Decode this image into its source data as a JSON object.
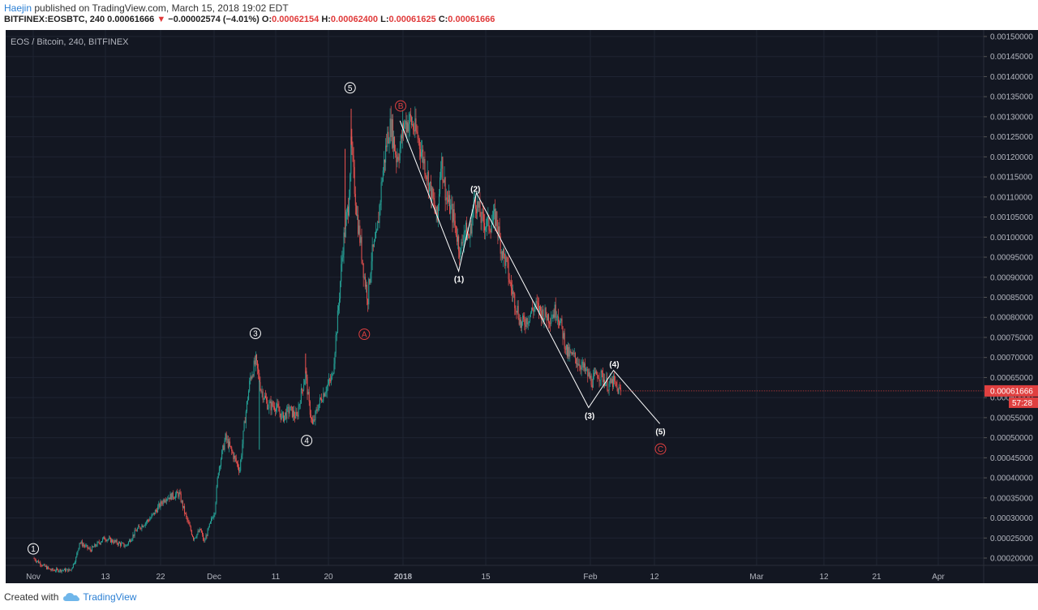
{
  "header": {
    "author": "Haejin",
    "published_text": "published on TradingView.com, March 15, 2018 19:02 EDT",
    "symbol": "BITFINEX:EOSBTC, 240",
    "last": "0.00061666",
    "change": "−0.00002574 (−4.01%)",
    "o_label": "O:",
    "o_value": "0.00062154",
    "h_label": "H:",
    "h_value": "0.00062400",
    "l_label": "L:",
    "l_value": "0.00061625",
    "c_label": "C:",
    "c_value": "0.00061666"
  },
  "footer": {
    "created_with": "Created with",
    "brand": "TradingView"
  },
  "colors": {
    "background": "#131722",
    "up": "#26a69a",
    "down": "#ef5350",
    "grid": "#1f2433",
    "axis_text": "#b2b5be",
    "wave_line": "#ffffff",
    "abc_labels": "#e04040",
    "price_tag": "#e04040"
  },
  "chart_data": {
    "type": "candlestick",
    "title": "EOS / Bitcoin, 240, BITFINEX",
    "x_tick_labels": [
      "Nov",
      "13",
      "22",
      "Dec",
      "11",
      "20",
      "2018",
      "15",
      "Feb",
      "12",
      "Mar",
      "12",
      "21",
      "Apr"
    ],
    "y_tick_labels": [
      "0.00150000",
      "0.00145000",
      "0.00140000",
      "0.00135000",
      "0.00130000",
      "0.00125000",
      "0.00120000",
      "0.00115000",
      "0.00110000",
      "0.00105000",
      "0.00100000",
      "0.00095000",
      "0.00090000",
      "0.00085000",
      "0.00080000",
      "0.00075000",
      "0.00070000",
      "0.00065000",
      "0.00060000",
      "0.00055000",
      "0.00050000",
      "0.00045000",
      "0.00040000",
      "0.00035000",
      "0.00030000",
      "0.00025000",
      "0.00020000"
    ],
    "ylim": [
      0.00017,
      0.00152
    ],
    "last_price_label": "0.00061666",
    "countdown_label": "57:28",
    "price_path": [
      [
        0.0,
        0.0002
      ],
      [
        3.0,
        0.00018
      ],
      [
        5.0,
        0.00017
      ],
      [
        10.5,
        0.00017
      ],
      [
        12.0,
        0.0002
      ],
      [
        13.0,
        0.00024
      ],
      [
        16.0,
        0.00022
      ],
      [
        20.0,
        0.00025
      ],
      [
        23.0,
        0.00024
      ],
      [
        26.0,
        0.00023
      ],
      [
        29.0,
        0.00027
      ],
      [
        33.0,
        0.0003
      ],
      [
        37.0,
        0.00035
      ],
      [
        41.0,
        0.00036
      ],
      [
        43.0,
        0.0003
      ],
      [
        45.0,
        0.00025
      ],
      [
        47.0,
        0.00027
      ],
      [
        48.0,
        0.00024
      ],
      [
        51.0,
        0.00032
      ],
      [
        52.0,
        0.00042
      ],
      [
        54.0,
        0.0005
      ],
      [
        56.0,
        0.00046
      ],
      [
        58.0,
        0.00042
      ],
      [
        59.5,
        0.00055
      ],
      [
        61.0,
        0.00065
      ],
      [
        62.5,
        0.00069
      ],
      [
        64.0,
        0.00062
      ],
      [
        66.0,
        0.00058
      ],
      [
        68.0,
        0.00058
      ],
      [
        70.0,
        0.00055
      ],
      [
        72.0,
        0.00057
      ],
      [
        74.0,
        0.00055
      ],
      [
        75.0,
        0.0006
      ],
      [
        76.5,
        0.00066
      ],
      [
        77.5,
        0.00058
      ],
      [
        78.5,
        0.00053
      ],
      [
        80.0,
        0.00058
      ],
      [
        82.0,
        0.00062
      ],
      [
        84.0,
        0.00065
      ],
      [
        85.5,
        0.0008
      ],
      [
        87.0,
        0.00098
      ],
      [
        88.5,
        0.00108
      ],
      [
        89.3,
        0.00123
      ],
      [
        90.0,
        0.00115
      ],
      [
        91.0,
        0.00105
      ],
      [
        92.0,
        0.00098
      ],
      [
        93.0,
        0.0009
      ],
      [
        94.0,
        0.00085
      ],
      [
        95.0,
        0.00095
      ],
      [
        96.5,
        0.001
      ],
      [
        98.0,
        0.00115
      ],
      [
        99.5,
        0.00125
      ],
      [
        100.5,
        0.00128
      ],
      [
        102.0,
        0.0012
      ],
      [
        103.0,
        0.00122
      ],
      [
        104.0,
        0.00128
      ],
      [
        106.0,
        0.00129
      ],
      [
        108.0,
        0.00125
      ],
      [
        110.0,
        0.00118
      ],
      [
        112.0,
        0.0011
      ],
      [
        113.5,
        0.00104
      ],
      [
        114.5,
        0.0012
      ],
      [
        116.0,
        0.0011
      ],
      [
        118.0,
        0.00105
      ],
      [
        120.0,
        0.00096
      ],
      [
        121.0,
        0.00102
      ],
      [
        122.5,
        0.001
      ],
      [
        124.0,
        0.0011
      ],
      [
        126.0,
        0.00104
      ],
      [
        128.0,
        0.00103
      ],
      [
        130.0,
        0.00105
      ],
      [
        131.5,
        0.00097
      ],
      [
        133.0,
        0.00093
      ],
      [
        134.0,
        0.00088
      ],
      [
        136.0,
        0.00082
      ],
      [
        137.0,
        0.00078
      ],
      [
        139.0,
        0.0008
      ],
      [
        141.0,
        0.00083
      ],
      [
        143.0,
        0.00081
      ],
      [
        145.0,
        0.0008
      ],
      [
        147.0,
        0.00082
      ],
      [
        148.5,
        0.00077
      ],
      [
        150.0,
        0.00071
      ],
      [
        152.0,
        0.0007
      ],
      [
        154.0,
        0.00068
      ],
      [
        155.5,
        0.00066
      ],
      [
        157.0,
        0.00064
      ],
      [
        158.5,
        0.00066
      ],
      [
        160.0,
        0.00065
      ],
      [
        161.5,
        0.00063
      ],
      [
        163.0,
        0.00064
      ],
      [
        164.0,
        0.00062
      ],
      [
        165.0,
        0.00061666
      ]
    ],
    "wave_path": [
      [
        103.0,
        0.00129
      ],
      [
        119.5,
        0.000915
      ],
      [
        124.5,
        0.00111
      ],
      [
        156.0,
        0.000575
      ],
      [
        163.0,
        0.000668
      ],
      [
        176.0,
        0.000535
      ]
    ],
    "wave_labels": [
      {
        "text": "1",
        "x": 0.0,
        "y": 0.000223,
        "style": "circle-white"
      },
      {
        "text": "3",
        "x": 62.4,
        "y": 0.00076,
        "style": "circle-white"
      },
      {
        "text": "4",
        "x": 76.8,
        "y": 0.000493,
        "style": "circle-white"
      },
      {
        "text": "5",
        "x": 89.0,
        "y": 0.001372,
        "style": "circle-white"
      },
      {
        "text": "A",
        "x": 93.0,
        "y": 0.000758,
        "style": "circle-red"
      },
      {
        "text": "B",
        "x": 103.2,
        "y": 0.001327,
        "style": "circle-red"
      },
      {
        "text": "(1)",
        "x": 119.6,
        "y": 0.000895,
        "style": "text-white"
      },
      {
        "text": "(2)",
        "x": 124.2,
        "y": 0.00112,
        "style": "text-white"
      },
      {
        "text": "(3)",
        "x": 156.3,
        "y": 0.000555,
        "style": "text-white"
      },
      {
        "text": "(4)",
        "x": 163.2,
        "y": 0.000683,
        "style": "text-white"
      },
      {
        "text": "(5)",
        "x": 176.2,
        "y": 0.000515,
        "style": "text-white"
      },
      {
        "text": "C",
        "x": 176.2,
        "y": 0.000472,
        "style": "circle-red"
      }
    ]
  }
}
